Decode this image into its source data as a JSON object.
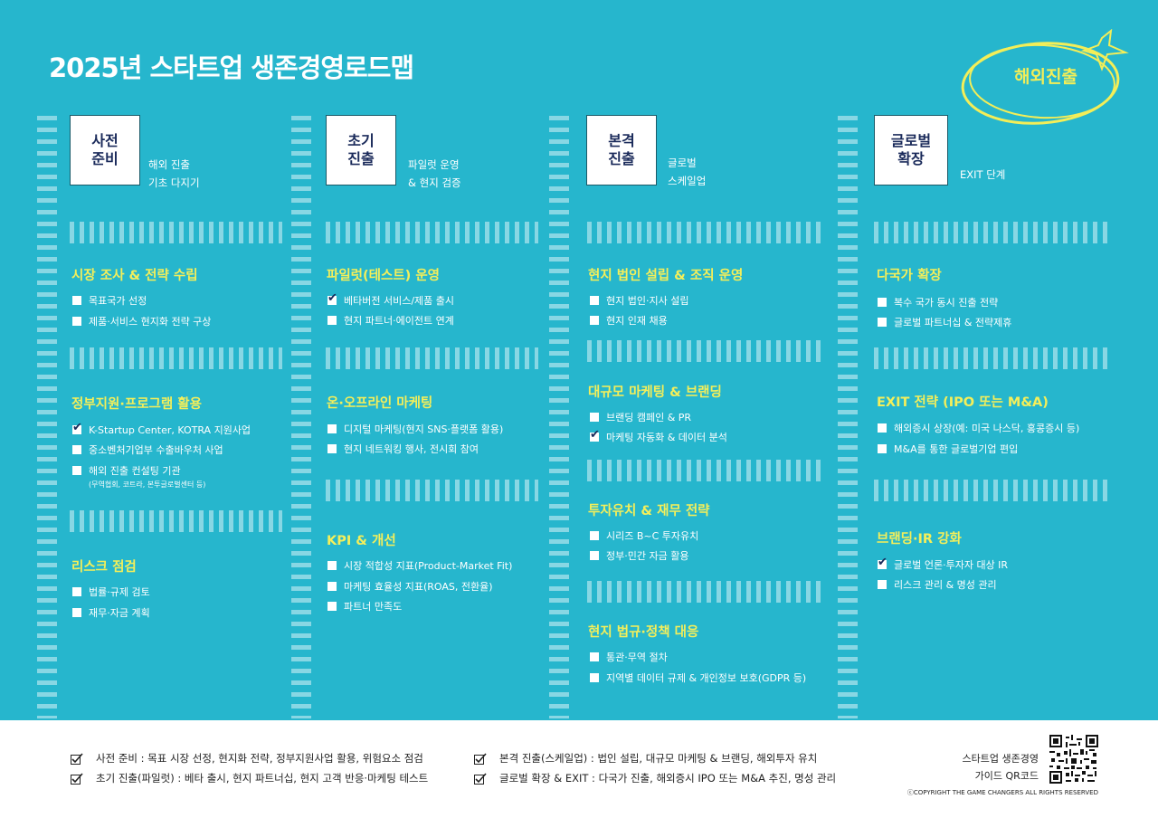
{
  "title": "2025년 스타트업 생존경영로드맵",
  "badge": "해외진출",
  "colors": {
    "background": "#26b6cd",
    "accent_yellow": "#f4ef5a",
    "box_text": "#1a2a5a",
    "footer": "#ffffff"
  },
  "stages": [
    {
      "name": "사전\n준비",
      "desc": "해외 진출\n기초 다지기",
      "sections": [
        {
          "title": "시장 조사 & 전략 수립",
          "items": [
            {
              "label": "목표국가 선정",
              "checked": false
            },
            {
              "label": "제품·서비스 현지화 전략 구상",
              "checked": false
            }
          ]
        },
        {
          "title": "정부지원·프로그램 활용",
          "items": [
            {
              "label": "K-Startup Center, KOTRA 지원사업",
              "checked": true
            },
            {
              "label": "중소벤처기업부 수출바우처 사업",
              "checked": false
            },
            {
              "label": "해외 진출 컨설팅 기관",
              "checked": false
            }
          ],
          "note": "(무역협회, 코트라, 본투글로벌센터 등)"
        },
        {
          "title": "리스크 점검",
          "items": [
            {
              "label": "법률·규제 검토",
              "checked": false
            },
            {
              "label": "재무·자금 계획",
              "checked": false
            }
          ]
        }
      ]
    },
    {
      "name": "초기\n진출",
      "desc": "파일럿 운영\n& 현지 검증",
      "sections": [
        {
          "title": "파일럿(테스트) 운영",
          "items": [
            {
              "label": "베타버전 서비스/제품 출시",
              "checked": true
            },
            {
              "label": "현지 파트너·에이전트 연계",
              "checked": false
            }
          ]
        },
        {
          "title": "온·오프라인 마케팅",
          "items": [
            {
              "label": "디지털 마케팅(현지 SNS·플랫폼 활용)",
              "checked": false
            },
            {
              "label": "현지 네트워킹 행사, 전시회 참여",
              "checked": false
            }
          ]
        },
        {
          "title": "KPI & 개선",
          "items": [
            {
              "label": "시장 적합성 지표(Product-Market Fit)",
              "checked": false
            },
            {
              "label": "마케팅 효율성 지표(ROAS, 전환율)",
              "checked": false
            },
            {
              "label": "파트너 만족도",
              "checked": false
            }
          ]
        }
      ]
    },
    {
      "name": "본격\n진출",
      "desc": "글로벌\n스케일업",
      "sections": [
        {
          "title": "현지 법인 설립 & 조직 운영",
          "items": [
            {
              "label": "현지 법인·지사 설립",
              "checked": false
            },
            {
              "label": "현지 인재 채용",
              "checked": false
            }
          ]
        },
        {
          "title": "대규모 마케팅 & 브랜딩",
          "items": [
            {
              "label": "브랜딩 캠페인 & PR",
              "checked": false
            },
            {
              "label": "마케팅 자동화 & 데이터 분석",
              "checked": true
            }
          ]
        },
        {
          "title": "투자유치 & 재무 전략",
          "items": [
            {
              "label": "시리즈 B~C 투자유치",
              "checked": false
            },
            {
              "label": "정부·민간 자금 활용",
              "checked": false
            }
          ]
        },
        {
          "title": "현지 법규·정책 대응",
          "items": [
            {
              "label": "통관·무역 절차",
              "checked": false
            },
            {
              "label": "지역별 데이터 규제 & 개인정보 보호(GDPR 등)",
              "checked": false
            }
          ]
        }
      ]
    },
    {
      "name": "글로벌\n확장",
      "desc": "EXIT 단계",
      "sections": [
        {
          "title": "다국가 확장",
          "items": [
            {
              "label": "복수 국가 동시 진출 전략",
              "checked": false
            },
            {
              "label": "글로벌 파트너십 & 전략제휴",
              "checked": false
            }
          ]
        },
        {
          "title": "EXIT 전략 (IPO 또는 M&A)",
          "items": [
            {
              "label": "해외증시 상장(예: 미국 나스닥, 홍콩증시 등)",
              "checked": false
            },
            {
              "label": "M&A를 통한 글로벌기업 편입",
              "checked": false
            }
          ]
        },
        {
          "title": "브랜딩·IR 강화",
          "items": [
            {
              "label": "글로벌 언론·투자자 대상 IR",
              "checked": true
            },
            {
              "label": "리스크 관리 & 명성 관리",
              "checked": false
            }
          ]
        }
      ]
    }
  ],
  "footer": {
    "items": [
      "사전 준비 : 목표 시장 선정, 현지화 전략, 정부지원사업 활용, 위험요소 점검",
      "초기 진출(파일럿) : 베타 출시, 현지 파트너십, 현지 고객 반응·마케팅 테스트",
      "본격 진출(스케일업) : 법인 설립, 대규모 마케팅 & 브랜딩, 해외투자 유치",
      "글로벌 확장 & EXIT : 다국가 진출, 해외증시 IPO 또는 M&A 추진, 명성 관리"
    ],
    "qr_label": "스타트업 생존경영\n가이드 QR코드",
    "copyright": "ⓒCOPYRIGHT THE GAME CHANGERS ALL RIGHTS RESERVED"
  }
}
